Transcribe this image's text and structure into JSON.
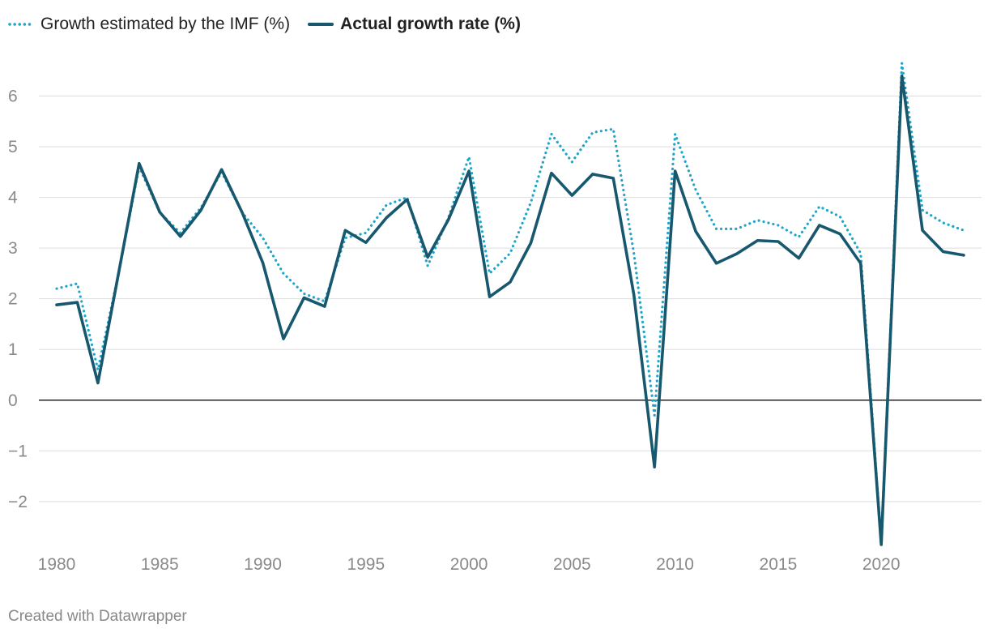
{
  "legend": {
    "estimated_label": "Growth estimated by the IMF (%)",
    "actual_label": "Actual growth rate (%)"
  },
  "footer": {
    "credit": "Created with Datawrapper"
  },
  "colors": {
    "estimated": "#1ea5c9",
    "actual": "#17586e",
    "grid": "#dddddd",
    "zero_line": "#222222",
    "tick_text": "#8a8a8a"
  },
  "chart_data": {
    "type": "line",
    "title": "",
    "xlabel": "",
    "ylabel": "",
    "xlim": [
      1980,
      2024
    ],
    "ylim": [
      -2.85,
      6.6
    ],
    "grid": true,
    "legend_position": "top-left",
    "x_ticks": [
      1980,
      1985,
      1990,
      1995,
      2000,
      2005,
      2010,
      2015,
      2020
    ],
    "x_tick_labels": [
      "1980",
      "1985",
      "1990",
      "1995",
      "2000",
      "2005",
      "2010",
      "2015",
      "2020"
    ],
    "y_ticks": [
      -2,
      -1,
      0,
      1,
      2,
      3,
      4,
      5,
      6
    ],
    "y_tick_labels": [
      "−2",
      "−1",
      "0",
      "1",
      "2",
      "3",
      "4",
      "5",
      "6"
    ],
    "x": [
      1980,
      1981,
      1982,
      1983,
      1984,
      1985,
      1986,
      1987,
      1988,
      1989,
      1990,
      1991,
      1992,
      1993,
      1994,
      1995,
      1996,
      1997,
      1998,
      1999,
      2000,
      2001,
      2002,
      2003,
      2004,
      2005,
      2006,
      2007,
      2008,
      2009,
      2010,
      2011,
      2012,
      2013,
      2014,
      2015,
      2016,
      2017,
      2018,
      2019,
      2020,
      2021,
      2022,
      2023,
      2024
    ],
    "series": [
      {
        "name": "Growth estimated by the IMF (%)",
        "style": "dotted",
        "values": [
          2.2,
          2.3,
          0.6,
          2.5,
          4.6,
          3.7,
          3.3,
          3.8,
          4.5,
          3.7,
          3.2,
          2.5,
          2.1,
          1.95,
          3.2,
          3.3,
          3.85,
          4.0,
          2.65,
          3.6,
          4.8,
          2.5,
          2.9,
          3.9,
          5.25,
          4.7,
          5.28,
          5.35,
          2.9,
          -0.3,
          5.25,
          4.15,
          3.38,
          3.38,
          3.55,
          3.45,
          3.22,
          3.82,
          3.62,
          2.9,
          -2.8,
          6.65,
          3.75,
          3.5,
          3.35
        ]
      },
      {
        "name": "Actual growth rate (%)",
        "style": "solid",
        "values": [
          1.88,
          1.93,
          0.34,
          2.5,
          4.67,
          3.71,
          3.23,
          3.75,
          4.55,
          3.7,
          2.71,
          1.21,
          2.02,
          1.85,
          3.35,
          3.11,
          3.6,
          3.96,
          2.82,
          3.56,
          4.52,
          2.04,
          2.33,
          3.1,
          4.48,
          4.04,
          4.46,
          4.38,
          2.08,
          -1.32,
          4.52,
          3.33,
          2.7,
          2.89,
          3.15,
          3.13,
          2.8,
          3.45,
          3.28,
          2.7,
          -2.85,
          6.4,
          3.35,
          2.93,
          2.86
        ]
      }
    ]
  }
}
